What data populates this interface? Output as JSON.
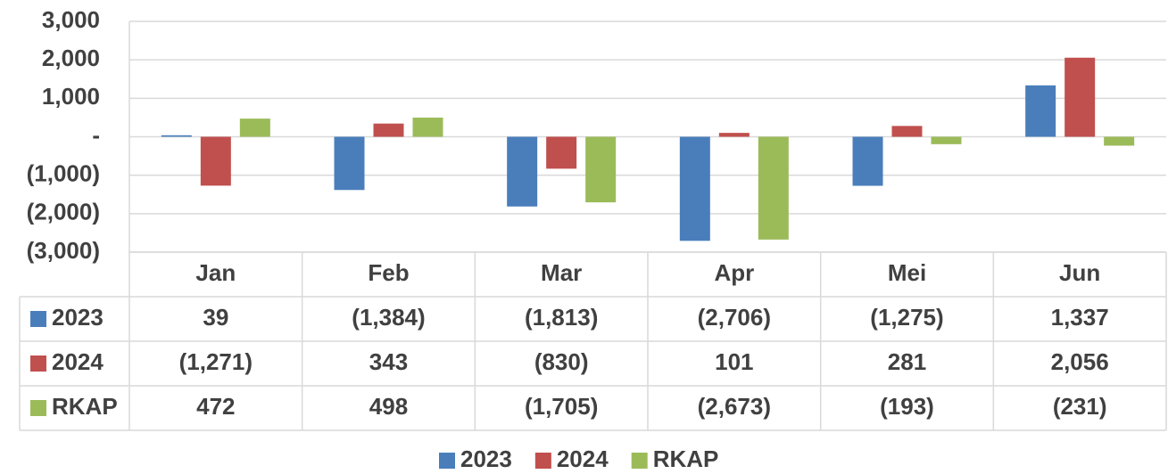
{
  "chart_data": {
    "type": "bar",
    "categories": [
      "Jan",
      "Feb",
      "Mar",
      "Apr",
      "Mei",
      "Jun"
    ],
    "series": [
      {
        "name": "2023",
        "color": "#4a7ebb",
        "values": [
          39,
          -1384,
          -1813,
          -2706,
          -1275,
          1337
        ],
        "value_labels": [
          "39",
          "(1,384)",
          "(1,813)",
          "(2,706)",
          "(1,275)",
          "1,337"
        ]
      },
      {
        "name": "2024",
        "color": "#c0504d",
        "values": [
          -1271,
          343,
          -830,
          101,
          281,
          2056
        ],
        "value_labels": [
          "(1,271)",
          "343",
          "(830)",
          "101",
          "281",
          "2,056"
        ]
      },
      {
        "name": "RKAP",
        "color": "#9bbb59",
        "values": [
          472,
          498,
          -1705,
          -2673,
          -193,
          -231
        ],
        "value_labels": [
          "472",
          "498",
          "(1,705)",
          "(2,673)",
          "(193)",
          "(231)"
        ]
      }
    ],
    "ylim": [
      -3000,
      3000
    ],
    "yticks": [
      {
        "value": -3000,
        "label": "(3,000)"
      },
      {
        "value": -2000,
        "label": "(2,000)"
      },
      {
        "value": -1000,
        "label": "(1,000)"
      },
      {
        "value": 0,
        "label": "-"
      },
      {
        "value": 1000,
        "label": "1,000"
      },
      {
        "value": 2000,
        "label": "2,000"
      },
      {
        "value": 3000,
        "label": "3,000"
      }
    ],
    "grid": true
  }
}
